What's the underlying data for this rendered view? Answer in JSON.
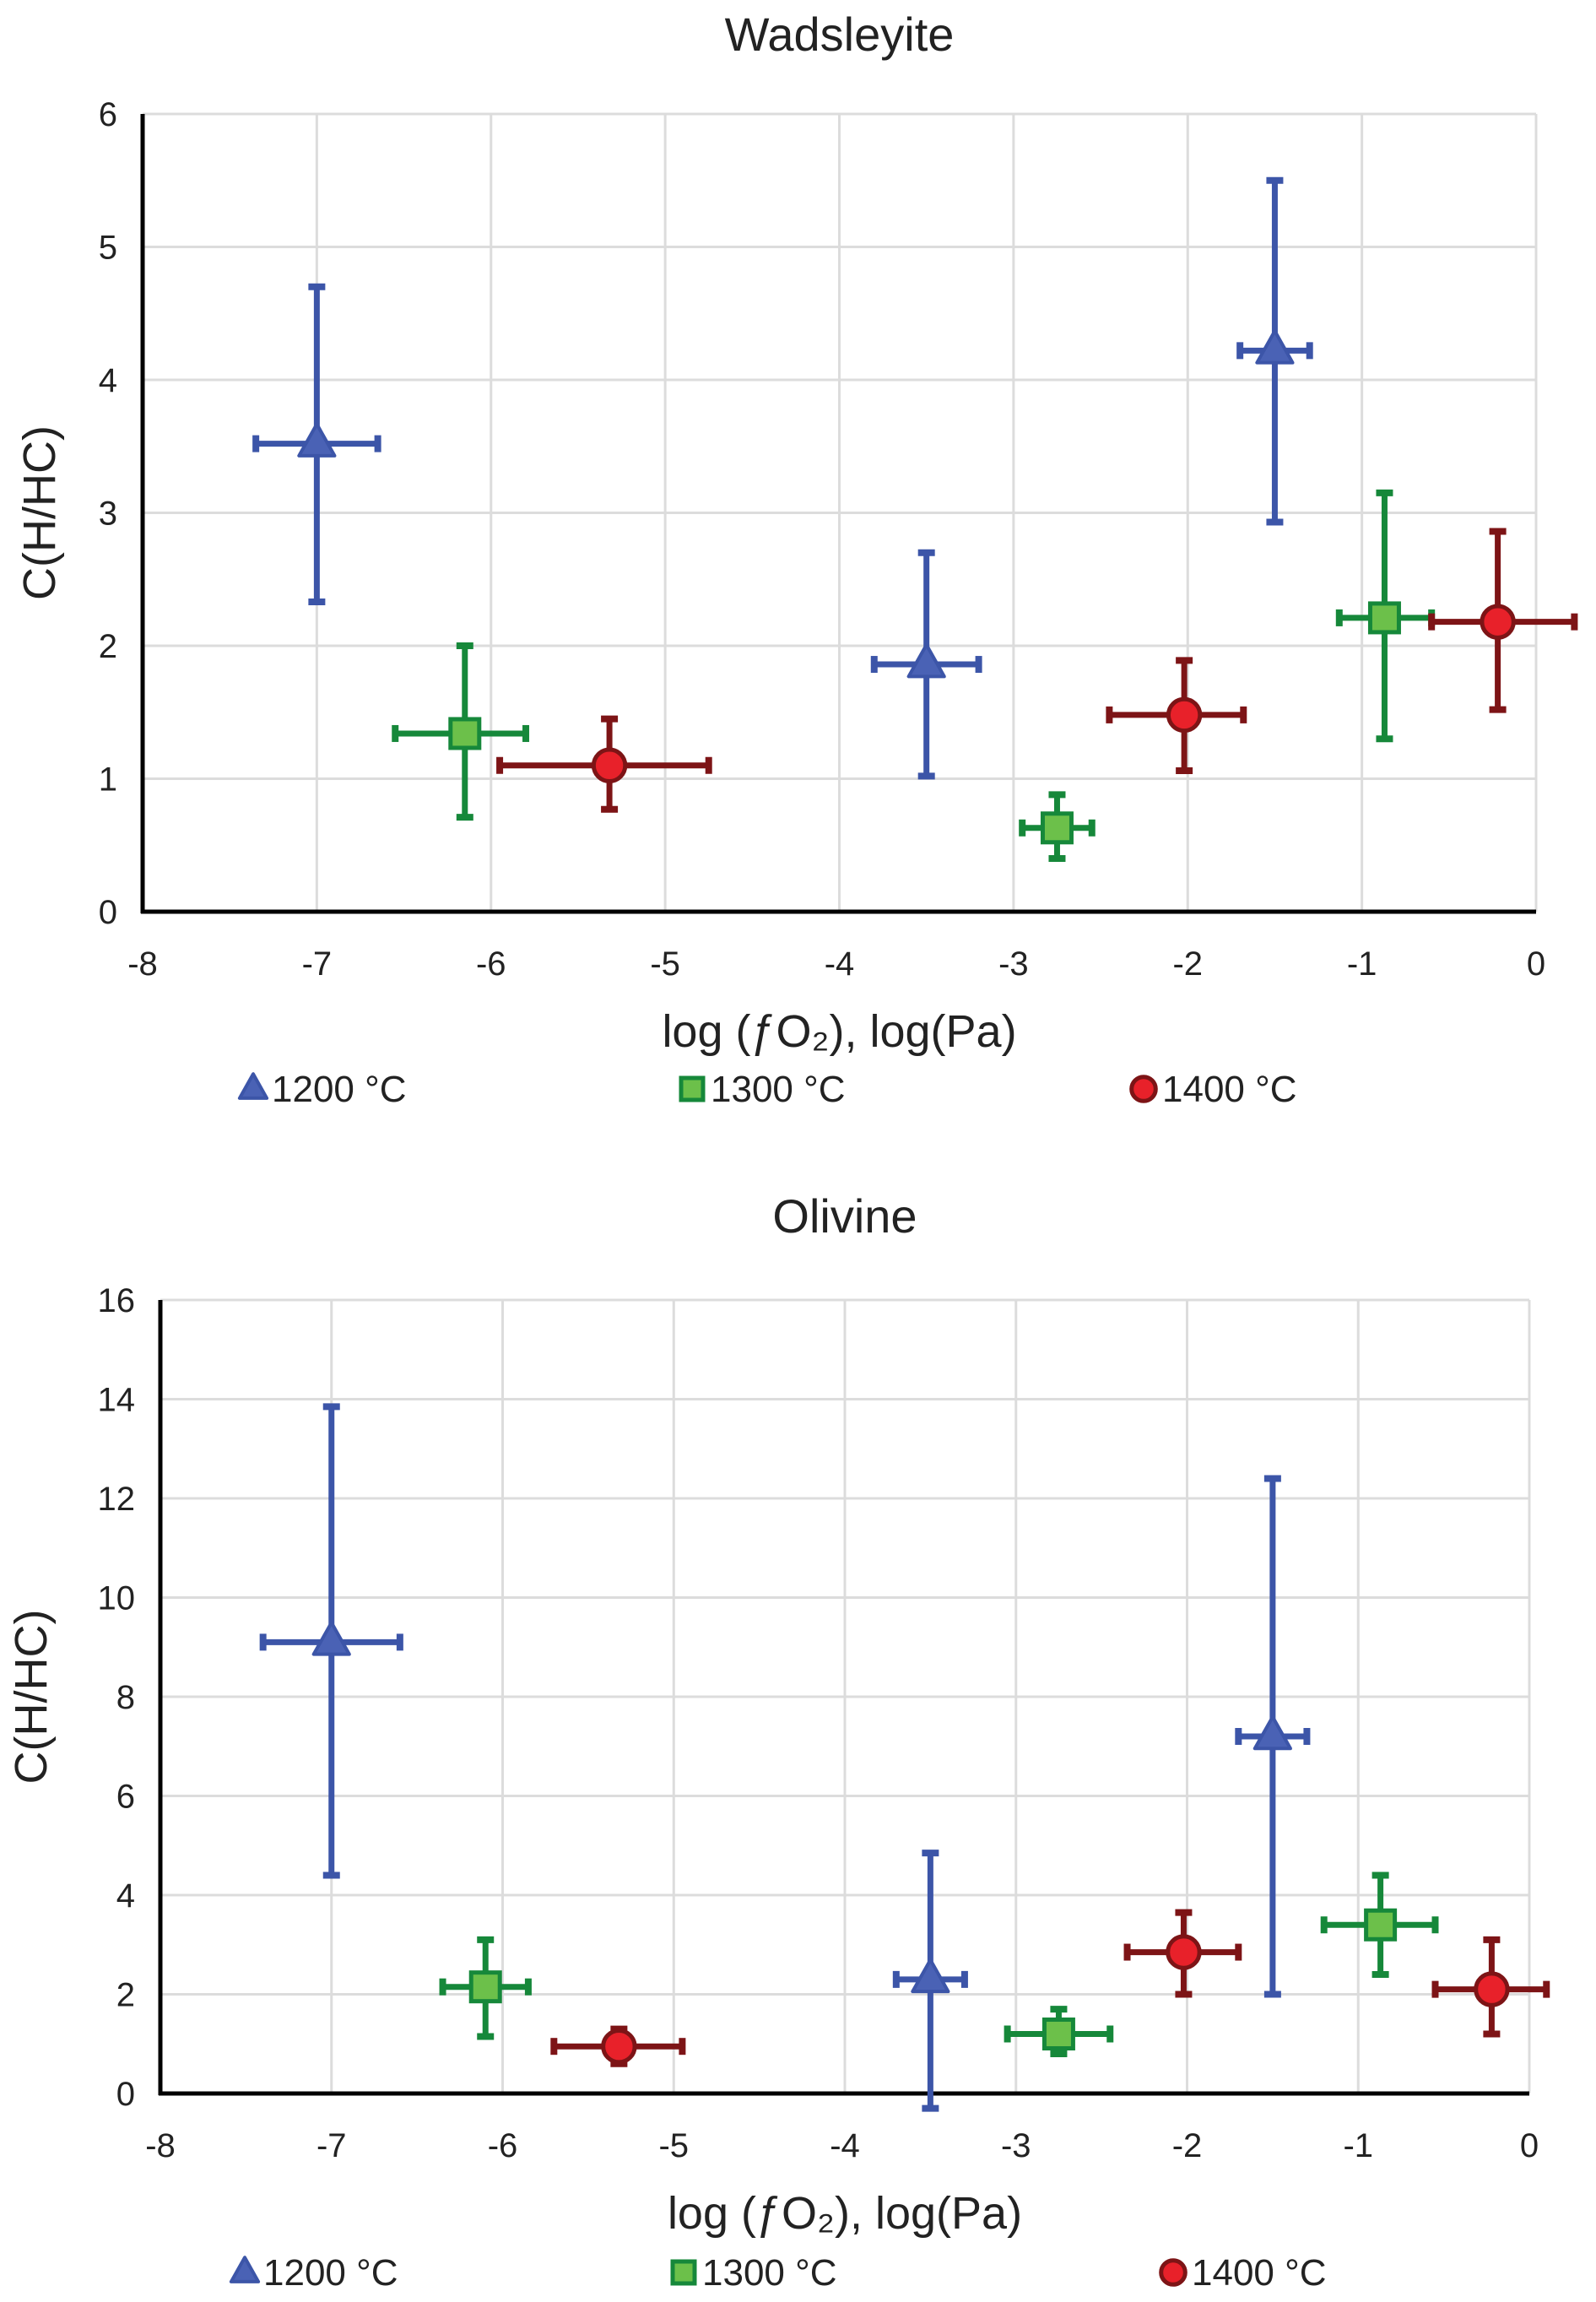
{
  "chart_data": [
    {
      "type": "scatter",
      "title": "Wadsleyite",
      "xlabel": "log (ƒO₂), log(Pa)",
      "ylabel": "C(H/HC)",
      "xlim": [
        -8,
        0
      ],
      "ylim": [
        0,
        6
      ],
      "xticks": [
        -8,
        -7,
        -6,
        -5,
        -4,
        -3,
        -2,
        -1,
        0
      ],
      "yticks": [
        0,
        1,
        2,
        3,
        4,
        5,
        6
      ],
      "grid": true,
      "legend": "bottom",
      "series": [
        {
          "name": "1200 °C",
          "marker": "triangle",
          "color": "#3c55a8",
          "fill": "#4a62b5",
          "points": [
            {
              "x": -7.0,
              "y": 3.52,
              "xerr": [
                -7.35,
                -6.65
              ],
              "yerr": [
                2.33,
                4.7
              ]
            },
            {
              "x": -3.5,
              "y": 1.86,
              "xerr": [
                -3.8,
                -3.2
              ],
              "yerr": [
                1.02,
                2.7
              ]
            },
            {
              "x": -1.5,
              "y": 4.22,
              "xerr": [
                -1.7,
                -1.3
              ],
              "yerr": [
                2.93,
                5.5
              ]
            }
          ]
        },
        {
          "name": "1300 °C",
          "marker": "square",
          "color": "#16883a",
          "fill": "#6cc04a",
          "points": [
            {
              "x": -6.15,
              "y": 1.34,
              "xerr": [
                -6.55,
                -5.8
              ],
              "yerr": [
                0.71,
                2.0
              ]
            },
            {
              "x": -2.75,
              "y": 0.63,
              "xerr": [
                -2.95,
                -2.55
              ],
              "yerr": [
                0.4,
                0.88
              ]
            },
            {
              "x": -0.87,
              "y": 2.21,
              "xerr": [
                -1.13,
                -0.6
              ],
              "yerr": [
                1.3,
                3.15
              ]
            }
          ]
        },
        {
          "name": "1400 °C",
          "marker": "circle",
          "color": "#7d1416",
          "fill": "#e8212a",
          "points": [
            {
              "x": -5.32,
              "y": 1.1,
              "xerr": [
                -5.95,
                -4.75
              ],
              "yerr": [
                0.77,
                1.45
              ]
            },
            {
              "x": -2.02,
              "y": 1.48,
              "xerr": [
                -2.45,
                -1.68
              ],
              "yerr": [
                1.06,
                1.89
              ]
            },
            {
              "x": -0.22,
              "y": 2.18,
              "xerr": [
                -0.6,
                0.22
              ],
              "yerr": [
                1.52,
                2.86
              ]
            }
          ]
        }
      ]
    },
    {
      "type": "scatter",
      "title": "Olivine",
      "xlabel": "log (ƒO₂), log(Pa)",
      "ylabel": "C(H/HC)",
      "xlim": [
        -8,
        0
      ],
      "ylim": [
        0,
        16
      ],
      "xticks": [
        -8,
        -7,
        -6,
        -5,
        -4,
        -3,
        -2,
        -1,
        0
      ],
      "yticks": [
        0,
        2,
        4,
        6,
        8,
        10,
        12,
        14,
        16
      ],
      "grid": true,
      "legend": "bottom",
      "series": [
        {
          "name": "1200 °C",
          "marker": "triangle",
          "color": "#3c55a8",
          "fill": "#4a62b5",
          "points": [
            {
              "x": -7.0,
              "y": 9.1,
              "xerr": [
                -7.4,
                -6.6
              ],
              "yerr": [
                4.4,
                13.85
              ]
            },
            {
              "x": -3.5,
              "y": 2.3,
              "xerr": [
                -3.7,
                -3.3
              ],
              "yerr": [
                -0.3,
                4.85
              ]
            },
            {
              "x": -1.5,
              "y": 7.2,
              "xerr": [
                -1.7,
                -1.3
              ],
              "yerr": [
                2.0,
                12.4
              ]
            }
          ]
        },
        {
          "name": "1300 °C",
          "marker": "square",
          "color": "#16883a",
          "fill": "#6cc04a",
          "points": [
            {
              "x": -6.1,
              "y": 2.15,
              "xerr": [
                -6.35,
                -5.85
              ],
              "yerr": [
                1.15,
                3.1
              ]
            },
            {
              "x": -2.75,
              "y": 1.2,
              "xerr": [
                -3.05,
                -2.45
              ],
              "yerr": [
                0.8,
                1.7
              ]
            },
            {
              "x": -0.87,
              "y": 3.4,
              "xerr": [
                -1.2,
                -0.55
              ],
              "yerr": [
                2.4,
                4.4
              ]
            }
          ]
        },
        {
          "name": "1400 °C",
          "marker": "circle",
          "color": "#7d1416",
          "fill": "#e8212a",
          "points": [
            {
              "x": -5.32,
              "y": 0.95,
              "xerr": [
                -5.7,
                -4.95
              ],
              "yerr": [
                0.6,
                1.3
              ]
            },
            {
              "x": -2.02,
              "y": 2.85,
              "xerr": [
                -2.35,
                -1.7
              ],
              "yerr": [
                2.0,
                3.65
              ]
            },
            {
              "x": -0.22,
              "y": 2.1,
              "xerr": [
                -0.55,
                0.1
              ],
              "yerr": [
                1.2,
                3.1
              ]
            }
          ]
        }
      ]
    }
  ]
}
